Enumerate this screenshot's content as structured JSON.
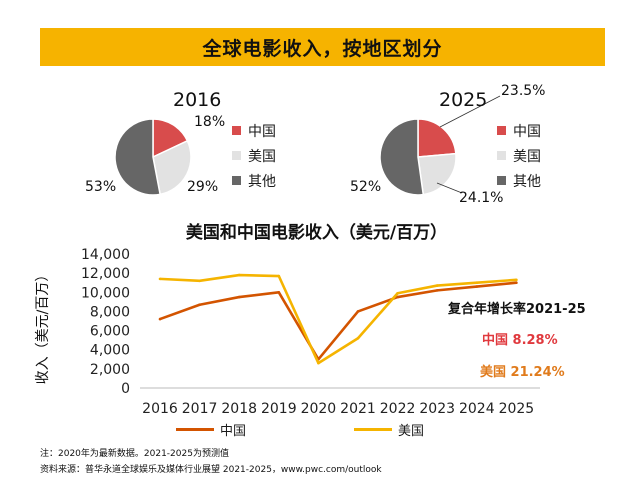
{
  "banner_title": "全球电影收入，按地区划分",
  "colors": {
    "banner": "#f6b300",
    "china": "#d84c4c",
    "us": "#e2e2e2",
    "other": "#666666",
    "china_line": "#d35400",
    "us_line": "#f5b400"
  },
  "pie_legend": [
    "中国",
    "美国",
    "其他"
  ],
  "pies": [
    {
      "year": "2016",
      "labels": {
        "china": "18%",
        "us": "29%",
        "other": "53%"
      }
    },
    {
      "year": "2025",
      "labels": {
        "china": "23.5%",
        "us": "24.1%",
        "other": "52%"
      }
    }
  ],
  "line_title": "美国和中国电影收入（美元/百万）",
  "ylabel": "收入（美元/百万）",
  "cagr": {
    "title": "复合年增长率2021-25",
    "china": "中国 8.28%",
    "us": "美国 21.24%"
  },
  "footnote": "注：2020年为最新数据。2021-2025为预测值",
  "source": "资料来源：普华永道全球娱乐及媒体行业展望 2021-2025，www.pwc.com/outlook",
  "chart_data": [
    {
      "type": "pie",
      "title": "2016",
      "categories": [
        "中国",
        "美国",
        "其他"
      ],
      "values": [
        18,
        29,
        53
      ]
    },
    {
      "type": "pie",
      "title": "2025",
      "categories": [
        "中国",
        "美国",
        "其他"
      ],
      "values": [
        23.5,
        24.1,
        52
      ]
    },
    {
      "type": "line",
      "title": "美国和中国电影收入（美元/百万）",
      "xlabel": "",
      "ylabel": "收入（美元/百万）",
      "x": [
        "2016",
        "2017",
        "2018",
        "2019",
        "2020",
        "2021",
        "2022",
        "2023",
        "2024",
        "2025"
      ],
      "ylim": [
        0,
        14000
      ],
      "yticks": [
        "0",
        "2,000",
        "4,000",
        "6,000",
        "8,000",
        "10,000",
        "12,000",
        "14,000"
      ],
      "series": [
        {
          "name": "中国",
          "values": [
            7200,
            8700,
            9500,
            10000,
            3000,
            8000,
            9500,
            10200,
            10600,
            11000
          ]
        },
        {
          "name": "美国",
          "values": [
            11400,
            11200,
            11800,
            11700,
            2600,
            5200,
            9900,
            10700,
            11000,
            11300
          ]
        }
      ],
      "grid": false,
      "legend": "bottom"
    }
  ]
}
